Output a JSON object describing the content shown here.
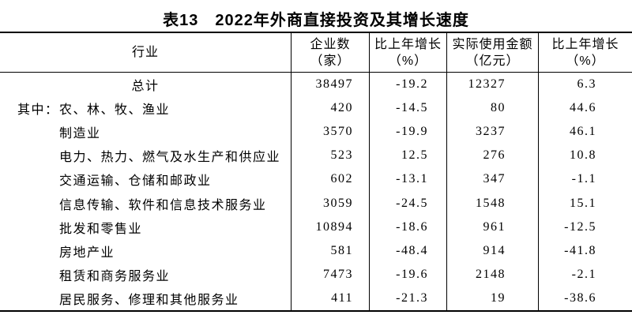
{
  "page": {
    "background_color": "#ffffff",
    "text_color": "#000000"
  },
  "title": "表13　2022年外商直接投资及其增长速度",
  "table": {
    "headers": {
      "industry": "行业",
      "enterprises_line1": "企业数",
      "enterprises_line2": "（家）",
      "enterprises_growth_line1": "比上年增长",
      "enterprises_growth_line2": "（%）",
      "amount_line1": "实际使用金额",
      "amount_line2": "（亿元）",
      "amount_growth_line1": "比上年增长",
      "amount_growth_line2": "（%）"
    },
    "rows": [
      {
        "prefix": "",
        "industry": "总计",
        "enterprises": "38497",
        "enterprises_growth": "-19.2",
        "amount": "12327",
        "amount_growth": "6.3"
      },
      {
        "prefix": "其中：",
        "industry": "农、林、牧、渔业",
        "enterprises": "420",
        "enterprises_growth": "-14.5",
        "amount": "80",
        "amount_growth": "44.6"
      },
      {
        "prefix": "",
        "industry": "制造业",
        "enterprises": "3570",
        "enterprises_growth": "-19.9",
        "amount": "3237",
        "amount_growth": "46.1"
      },
      {
        "prefix": "",
        "industry": "电力、热力、燃气及水生产和供应业",
        "enterprises": "523",
        "enterprises_growth": "12.5",
        "amount": "276",
        "amount_growth": "10.8"
      },
      {
        "prefix": "",
        "industry": "交通运输、仓储和邮政业",
        "enterprises": "602",
        "enterprises_growth": "-13.1",
        "amount": "347",
        "amount_growth": "-1.1"
      },
      {
        "prefix": "",
        "industry": "信息传输、软件和信息技术服务业",
        "enterprises": "3059",
        "enterprises_growth": "-24.5",
        "amount": "1548",
        "amount_growth": "15.1"
      },
      {
        "prefix": "",
        "industry": "批发和零售业",
        "enterprises": "10894",
        "enterprises_growth": "-18.6",
        "amount": "961",
        "amount_growth": "-12.5"
      },
      {
        "prefix": "",
        "industry": "房地产业",
        "enterprises": "581",
        "enterprises_growth": "-48.4",
        "amount": "914",
        "amount_growth": "-41.8"
      },
      {
        "prefix": "",
        "industry": "租赁和商务服务业",
        "enterprises": "7473",
        "enterprises_growth": "-19.6",
        "amount": "2148",
        "amount_growth": "-2.1"
      },
      {
        "prefix": "",
        "industry": "居民服务、修理和其他服务业",
        "enterprises": "411",
        "enterprises_growth": "-21.3",
        "amount": "19",
        "amount_growth": "-38.6"
      }
    ]
  }
}
